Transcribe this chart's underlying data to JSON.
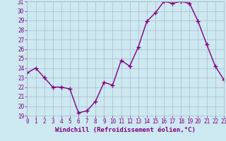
{
  "x": [
    0,
    1,
    2,
    3,
    4,
    5,
    6,
    7,
    8,
    9,
    10,
    11,
    12,
    13,
    14,
    15,
    16,
    17,
    18,
    19,
    20,
    21,
    22,
    23
  ],
  "y": [
    23.5,
    24.0,
    23.0,
    22.0,
    22.0,
    21.8,
    19.3,
    19.5,
    20.5,
    22.5,
    22.2,
    24.8,
    24.2,
    26.2,
    28.9,
    29.8,
    31.0,
    30.8,
    31.0,
    30.8,
    28.9,
    26.5,
    24.2,
    22.8
  ],
  "xlim": [
    0,
    23
  ],
  "ylim": [
    19,
    31
  ],
  "yticks": [
    19,
    20,
    21,
    22,
    23,
    24,
    25,
    26,
    27,
    28,
    29,
    30,
    31
  ],
  "xticks": [
    0,
    1,
    2,
    3,
    4,
    5,
    6,
    7,
    8,
    9,
    10,
    11,
    12,
    13,
    14,
    15,
    16,
    17,
    18,
    19,
    20,
    21,
    22,
    23
  ],
  "xlabel": "Windchill (Refroidissement éolien,°C)",
  "line_color": "#800080",
  "marker": "+",
  "bg_color": "#cce8f0",
  "grid_color": "#b0b8d0",
  "tick_label_color": "#800080",
  "axis_label_color": "#800080",
  "marker_size": 4,
  "line_width": 1.0,
  "xlabel_fontsize": 6.5,
  "tick_fontsize": 5.5
}
